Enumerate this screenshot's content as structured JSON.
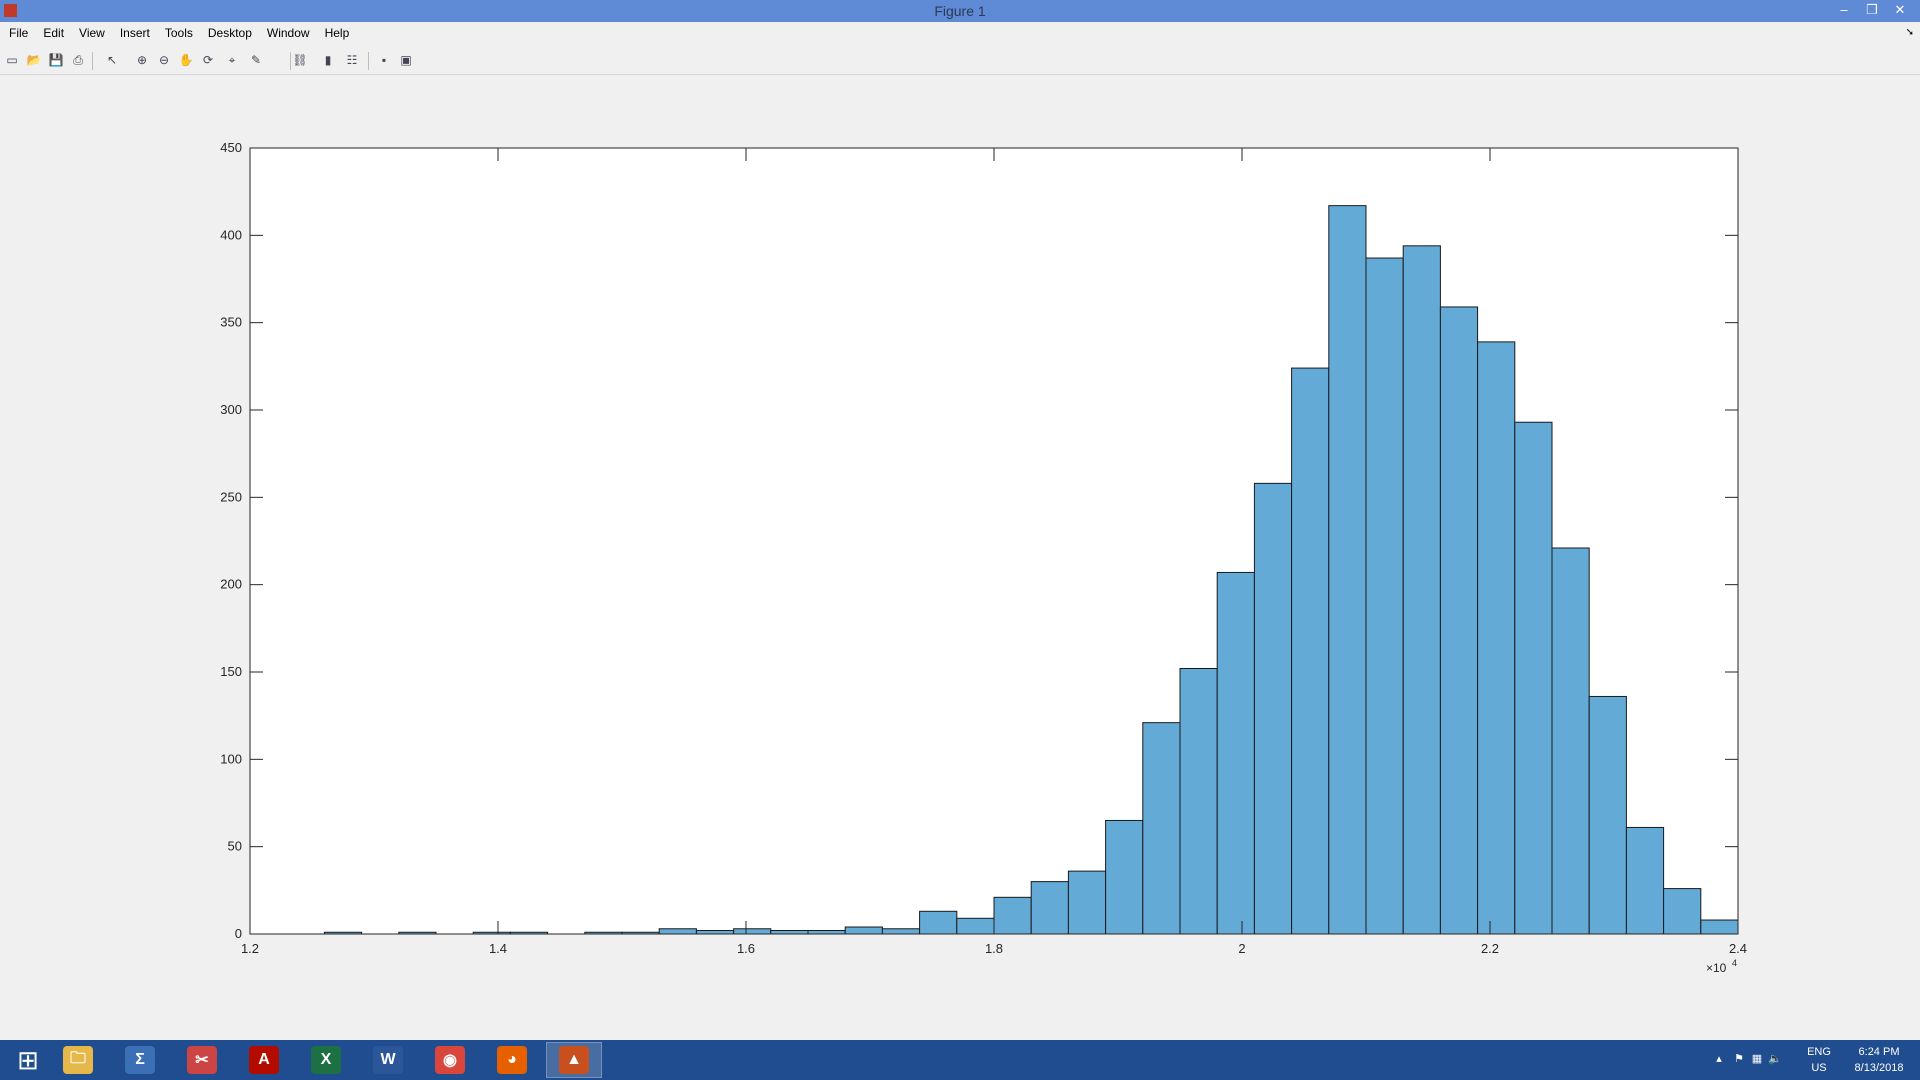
{
  "window": {
    "title": "Figure 1",
    "minimize": "–",
    "restore": "❐",
    "close": "✕"
  },
  "menu": [
    "File",
    "Edit",
    "View",
    "Insert",
    "Tools",
    "Desktop",
    "Window",
    "Help"
  ],
  "toolbar": [
    {
      "name": "new-figure-icon",
      "glyph": "▭"
    },
    {
      "name": "open-file-icon",
      "glyph": "📂"
    },
    {
      "name": "save-icon",
      "glyph": "💾"
    },
    {
      "name": "print-icon",
      "glyph": "⎙"
    },
    {
      "name": "select-arrow-icon",
      "glyph": "↖"
    },
    {
      "name": "zoom-in-icon",
      "glyph": "⊕"
    },
    {
      "name": "zoom-out-icon",
      "glyph": "⊖"
    },
    {
      "name": "pan-hand-icon",
      "glyph": "✋"
    },
    {
      "name": "rotate-3d-icon",
      "glyph": "⟳"
    },
    {
      "name": "data-cursor-icon",
      "glyph": "⌖"
    },
    {
      "name": "brush-icon",
      "glyph": "✎"
    },
    {
      "name": "link-plot-icon",
      "glyph": "⛓"
    },
    {
      "name": "insert-colorbar-icon",
      "glyph": "▮"
    },
    {
      "name": "insert-legend-icon",
      "glyph": "☷"
    },
    {
      "name": "hide-plot-tools-icon",
      "glyph": "▪"
    },
    {
      "name": "show-plot-tools-icon",
      "glyph": "▣"
    }
  ],
  "chart_data": {
    "type": "bar",
    "title": "",
    "xlabel": "",
    "ylabel": "",
    "x_exponent_label": "×10",
    "x_exponent": "4",
    "bar_color": "#64aad7",
    "edge_color": "#1a1a1a",
    "xlim": [
      1.2,
      2.4
    ],
    "ylim": [
      0,
      450
    ],
    "x_ticks": [
      "1.2",
      "1.4",
      "1.6",
      "1.8",
      "2",
      "2.2",
      "2.4"
    ],
    "x_tick_values": [
      1.2,
      1.4,
      1.6,
      1.8,
      2.0,
      2.2,
      2.4
    ],
    "y_ticks": [
      "0",
      "50",
      "100",
      "150",
      "200",
      "250",
      "300",
      "350",
      "400",
      "450"
    ],
    "y_tick_values": [
      0,
      50,
      100,
      150,
      200,
      250,
      300,
      350,
      400,
      450
    ],
    "bin_start": 1.2,
    "bin_width": 0.03,
    "values": [
      0,
      0,
      1,
      0,
      1,
      0,
      1,
      1,
      0,
      1,
      1,
      3,
      2,
      3,
      2,
      2,
      4,
      3,
      13,
      9,
      21,
      30,
      36,
      65,
      121,
      152,
      207,
      258,
      324,
      417,
      387,
      394,
      359,
      339,
      293,
      221,
      136,
      61,
      26,
      8
    ]
  },
  "taskbar": {
    "apps": [
      {
        "name": "start-button-icon",
        "glyph": "⊞",
        "color": "transparent",
        "active": false
      },
      {
        "name": "file-explorer-icon",
        "glyph": "🗀",
        "color": "#e6b84a",
        "active": false
      },
      {
        "name": "math-tool-icon",
        "glyph": "Σ",
        "color": "#3b6fb6",
        "active": false
      },
      {
        "name": "snipping-tool-icon",
        "glyph": "✂",
        "color": "#c44",
        "active": false
      },
      {
        "name": "acrobat-icon",
        "glyph": "A",
        "color": "#b30b00",
        "active": false
      },
      {
        "name": "excel-icon",
        "glyph": "X",
        "color": "#1d7044",
        "active": false
      },
      {
        "name": "word-icon",
        "glyph": "W",
        "color": "#2b579a",
        "active": false
      },
      {
        "name": "chrome-icon",
        "glyph": "◉",
        "color": "#d9473c",
        "active": false
      },
      {
        "name": "firefox-icon",
        "glyph": "◕",
        "color": "#e66000",
        "active": false
      },
      {
        "name": "matlab-icon",
        "glyph": "▲",
        "color": "#c8501e",
        "active": true
      }
    ],
    "lang_line1": "ENG",
    "lang_line2": "US",
    "time": "6:24 PM",
    "date": "8/13/2018"
  }
}
